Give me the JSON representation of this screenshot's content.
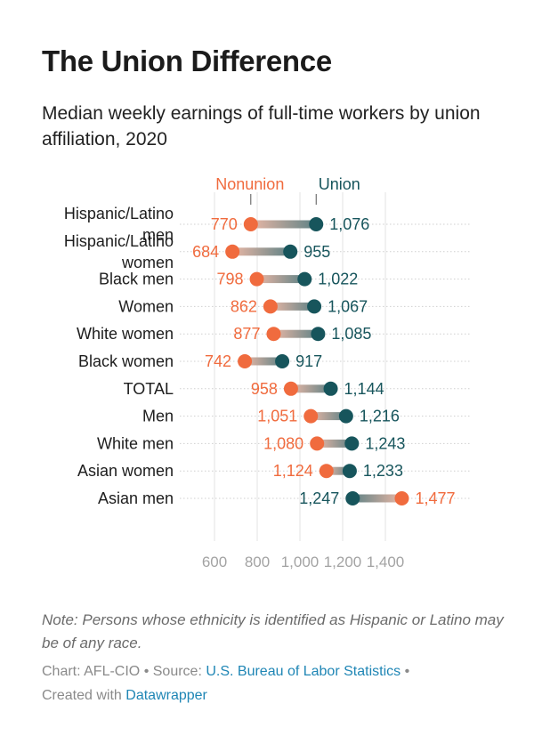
{
  "header": {
    "title": "The Union Difference",
    "subtitle": "Median weekly earnings of full-time workers by union affiliation, 2020"
  },
  "footer": {
    "note": "Note: Persons whose ethnicity is identified as Hispanic or Latino may be of any race.",
    "chart_prefix": "Chart: AFL-CIO",
    "separator": " • ",
    "source_prefix": "Source: ",
    "source_link": "U.S. Bureau of Labor Statistics",
    "separator2": " • ",
    "created_prefix": "Created with ",
    "created_link": "Datawrapper"
  },
  "colors": {
    "nonunion": "#f06b3e",
    "union": "#17555c",
    "grid": "#e3e3e3",
    "tick": "#a3a3a3"
  },
  "chart_data": {
    "type": "dot-range",
    "series_labels": {
      "nonunion": "Nonunion",
      "union": "Union"
    },
    "categories": [
      "Hispanic/Latino men",
      "Hispanic/Latino women",
      "Black men",
      "Women",
      "White women",
      "Black women",
      "TOTAL",
      "Men",
      "White men",
      "Asian women",
      "Asian men"
    ],
    "nonunion": [
      770,
      684,
      798,
      862,
      877,
      742,
      958,
      1051,
      1080,
      1124,
      1477
    ],
    "union": [
      1076,
      955,
      1022,
      1067,
      1085,
      917,
      1144,
      1216,
      1243,
      1233,
      1247
    ],
    "x_ticks": [
      600,
      800,
      1000,
      1200,
      1400
    ],
    "x_tick_labels": [
      "600",
      "800",
      "1,000",
      "1,200",
      "1,400"
    ],
    "xlim": [
      600,
      1400
    ],
    "xlabel": "",
    "ylabel": ""
  }
}
